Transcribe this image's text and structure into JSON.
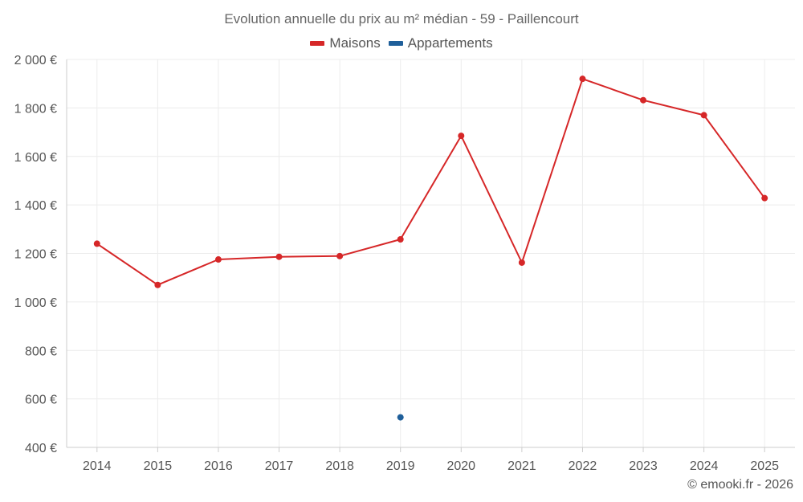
{
  "chart_data": {
    "type": "line",
    "title": "Evolution annuelle du prix au m² médian - 59 - Paillencourt",
    "categories": [
      "2014",
      "2015",
      "2016",
      "2017",
      "2018",
      "2019",
      "2020",
      "2021",
      "2022",
      "2023",
      "2024",
      "2025"
    ],
    "series": [
      {
        "name": "Maisons",
        "color": "#d62728",
        "values": [
          1240,
          1070,
          1175,
          1186,
          1189,
          1258,
          1685,
          1162,
          1920,
          1832,
          1770,
          1428
        ]
      },
      {
        "name": "Appartements",
        "color": "#1f5f9a",
        "values": [
          null,
          null,
          null,
          null,
          null,
          524,
          null,
          null,
          null,
          null,
          null,
          null
        ]
      }
    ],
    "ylim": [
      400,
      2000
    ],
    "yticks": [
      400,
      600,
      800,
      1000,
      1200,
      1400,
      1600,
      1800,
      2000
    ],
    "ytick_labels": [
      "400 €",
      "600 €",
      "800 €",
      "1 000 €",
      "1 200 €",
      "1 400 €",
      "1 600 €",
      "1 800 €",
      "2 000 €"
    ],
    "xlabel": "",
    "ylabel": "",
    "grid": true,
    "legend_position": "top-center"
  },
  "credit": "© emooki.fr - 2026"
}
